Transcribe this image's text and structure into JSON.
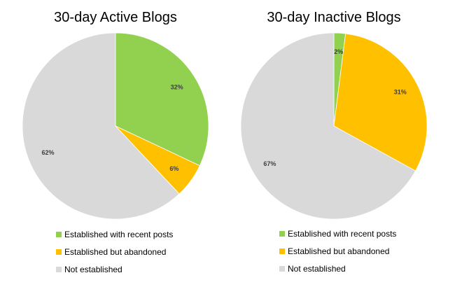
{
  "chart_data": [
    {
      "type": "pie",
      "title": "30-day Active Blogs",
      "slices": [
        {
          "label": "Established with recent posts",
          "value": 32,
          "display": "32%",
          "color": "#92d050"
        },
        {
          "label": "Established but abandoned",
          "value": 6,
          "display": "6%",
          "color": "#ffc000"
        },
        {
          "label": "Not established",
          "value": 62,
          "display": "62%",
          "color": "#d9d9d9"
        }
      ],
      "start_angle_deg": 0,
      "direction": "clockwise",
      "legend_position": "bottom"
    },
    {
      "type": "pie",
      "title": "30-day Inactive Blogs",
      "slices": [
        {
          "label": "Established with recent posts",
          "value": 2,
          "display": "2%",
          "color": "#92d050"
        },
        {
          "label": "Established but abandoned",
          "value": 31,
          "display": "31%",
          "color": "#ffc000"
        },
        {
          "label": "Not established",
          "value": 67,
          "display": "67%",
          "color": "#d9d9d9"
        }
      ],
      "start_angle_deg": 0,
      "direction": "clockwise",
      "legend_position": "bottom"
    }
  ]
}
